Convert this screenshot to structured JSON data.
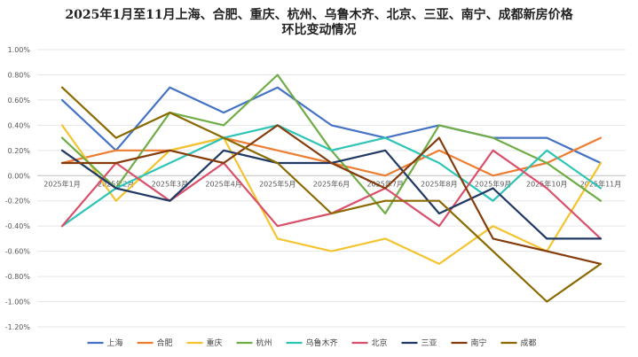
{
  "chart_data": {
    "type": "line",
    "title": "2025年1月至11月上海、合肥、重庆、杭州、乌鲁木齐、北京、三亚、南宁、成都新房价格",
    "subtitle": "环比变动情况",
    "xlabel": "",
    "ylabel": "",
    "categories": [
      "2025年1月",
      "2025年2月",
      "2025年3月",
      "2025年4月",
      "2025年5月",
      "2025年6月",
      "2025年7月",
      "2025年8月",
      "2025年9月",
      "2025年10月",
      "2025年11月"
    ],
    "y_ticks": [
      "1.00%",
      "0.80%",
      "0.60%",
      "0.40%",
      "0.20%",
      "0.00%",
      "-0.20%",
      "-0.40%",
      "-0.60%",
      "-0.80%",
      "-1.00%",
      "-1.20%"
    ],
    "ylim": [
      -1.2,
      1.0
    ],
    "y_unit": "%",
    "grid": "horizontal",
    "legend_position": "bottom",
    "series": [
      {
        "name": "上海",
        "color": "#4472C4",
        "values": [
          0.6,
          0.2,
          0.7,
          0.5,
          0.7,
          0.4,
          0.3,
          0.4,
          0.3,
          0.3,
          0.1
        ]
      },
      {
        "name": "合肥",
        "color": "#ED7D31",
        "values": [
          0.1,
          0.2,
          0.2,
          0.3,
          0.2,
          0.1,
          0.0,
          0.2,
          0.0,
          0.1,
          0.3
        ]
      },
      {
        "name": "重庆",
        "color": "#F4C430",
        "values": [
          0.4,
          -0.2,
          0.2,
          0.3,
          -0.5,
          -0.6,
          -0.5,
          -0.7,
          -0.4,
          -0.6,
          0.1
        ]
      },
      {
        "name": "杭州",
        "color": "#70AD47",
        "values": [
          0.3,
          -0.1,
          0.5,
          0.4,
          0.8,
          0.2,
          -0.3,
          0.4,
          0.3,
          0.1,
          -0.2
        ]
      },
      {
        "name": "乌鲁木齐",
        "color": "#2EC4B6",
        "values": [
          -0.4,
          -0.1,
          0.1,
          0.3,
          0.4,
          0.2,
          0.3,
          0.1,
          -0.2,
          0.2,
          -0.1
        ]
      },
      {
        "name": "北京",
        "color": "#D9506A",
        "values": [
          -0.4,
          0.1,
          -0.2,
          0.1,
          -0.4,
          -0.3,
          -0.1,
          -0.4,
          0.2,
          -0.1,
          -0.5
        ]
      },
      {
        "name": "三亚",
        "color": "#203864",
        "values": [
          0.2,
          -0.1,
          -0.2,
          0.2,
          0.1,
          0.1,
          0.2,
          -0.3,
          -0.1,
          -0.5,
          -0.5
        ]
      },
      {
        "name": "南宁",
        "color": "#843C0C",
        "values": [
          0.1,
          0.1,
          0.2,
          0.1,
          0.4,
          0.1,
          -0.1,
          0.3,
          -0.5,
          -0.6,
          -0.7
        ]
      },
      {
        "name": "成都",
        "color": "#8A6A00",
        "values": [
          0.7,
          0.3,
          0.5,
          0.3,
          0.1,
          -0.3,
          -0.2,
          -0.2,
          -0.6,
          -1.0,
          -0.7
        ]
      }
    ]
  }
}
